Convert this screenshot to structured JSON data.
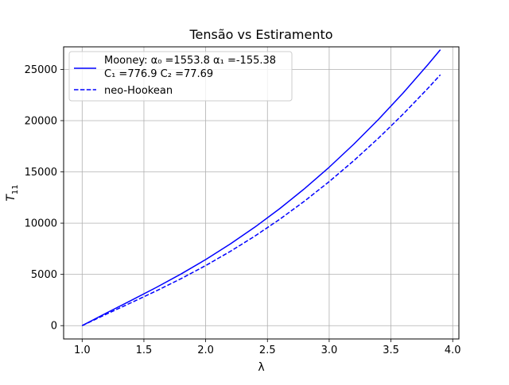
{
  "chart_data": {
    "type": "line",
    "title": "Tensão vs Estiramento",
    "xlabel": "λ",
    "ylabel": "T",
    "ylabel_sub": "11",
    "xlim": [
      0.85,
      4.05
    ],
    "ylim": [
      -1300,
      27200
    ],
    "xticks": [
      1.0,
      1.5,
      2.0,
      2.5,
      3.0,
      3.5,
      4.0
    ],
    "xtick_labels": [
      "1.0",
      "1.5",
      "2.0",
      "2.5",
      "3.0",
      "3.5",
      "4.0"
    ],
    "yticks": [
      0,
      5000,
      10000,
      15000,
      20000,
      25000
    ],
    "ytick_labels": [
      "0",
      "5000",
      "10000",
      "15000",
      "20000",
      "25000"
    ],
    "grid": true,
    "legend_position": "upper-left",
    "colors": {
      "series": "#0000ff",
      "grid": "#b0b0b0",
      "axes": "#000000"
    },
    "series": [
      {
        "name": "Mooney: α₀ =1553.8 α₁ =-155.38",
        "name_line2": "C₁ =776.9 C₂ =77.69",
        "style": "solid",
        "x": [
          1.0,
          1.2,
          1.4,
          1.6,
          1.8,
          2.0,
          2.2,
          2.4,
          2.6,
          2.8,
          3.0,
          3.2,
          3.4,
          3.6,
          3.8,
          3.9
        ],
        "y": [
          0,
          1257,
          2478,
          3724,
          5037,
          6446,
          7971,
          9625,
          11419,
          13361,
          15457,
          17713,
          20132,
          22720,
          25478,
          26920
        ]
      },
      {
        "name": "neo-Hookean",
        "style": "dashed",
        "x": [
          1.0,
          1.2,
          1.4,
          1.6,
          1.8,
          2.0,
          2.2,
          2.4,
          2.6,
          2.8,
          3.0,
          3.2,
          3.4,
          3.6,
          3.8,
          3.9
        ],
        "y": [
          0,
          1143,
          2253,
          3386,
          4579,
          5860,
          7247,
          8750,
          10381,
          12146,
          14052,
          16103,
          18302,
          20654,
          23162,
          24472
        ]
      }
    ]
  }
}
